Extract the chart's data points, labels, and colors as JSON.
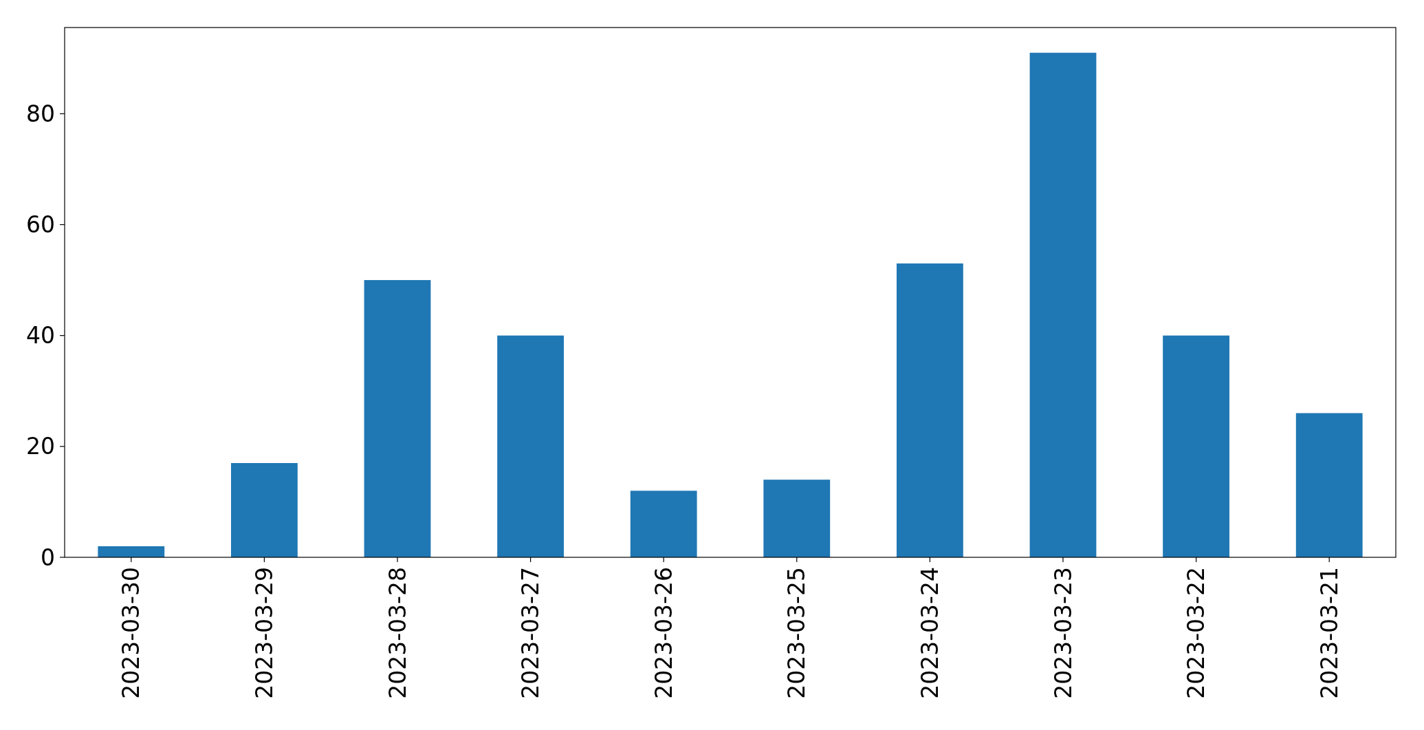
{
  "chart_data": {
    "type": "bar",
    "categories": [
      "2023-03-30",
      "2023-03-29",
      "2023-03-28",
      "2023-03-27",
      "2023-03-26",
      "2023-03-25",
      "2023-03-24",
      "2023-03-23",
      "2023-03-22",
      "2023-03-21"
    ],
    "values": [
      2,
      17,
      50,
      40,
      12,
      14,
      53,
      91,
      40,
      26
    ],
    "color": "#1f77b4",
    "ylim": [
      0,
      95.55
    ],
    "yticks": [
      0,
      20,
      40,
      60,
      80
    ],
    "grid": false
  }
}
